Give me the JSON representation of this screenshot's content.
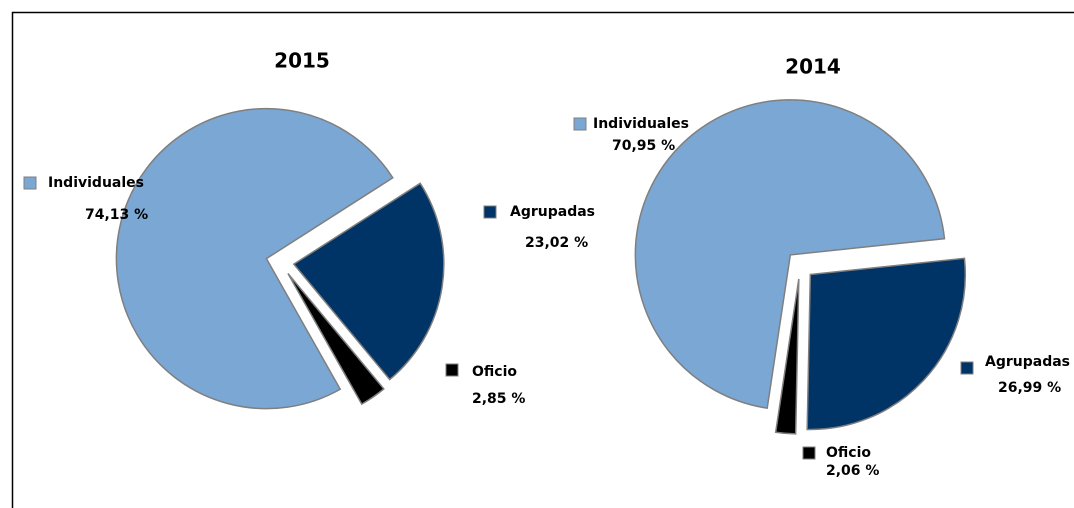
{
  "chart_data": [
    {
      "type": "pie",
      "title": "2015",
      "categories": [
        "Agrupadas",
        "Oficio",
        "Individuales"
      ],
      "values": [
        23.02,
        2.85,
        74.13
      ],
      "value_labels": [
        "23,02 %",
        "2,85 %",
        "74,13 %"
      ],
      "colors": [
        "#003366",
        "#000000",
        "#7ba7d4"
      ]
    },
    {
      "type": "pie",
      "title": "2014",
      "categories": [
        "Agrupadas",
        "Oficio",
        "Individuales"
      ],
      "values": [
        26.99,
        2.06,
        70.95
      ],
      "value_labels": [
        "26,99 %",
        "2,06 %",
        "70,95 %"
      ],
      "colors": [
        "#003366",
        "#000000",
        "#7ba7d4"
      ]
    }
  ]
}
